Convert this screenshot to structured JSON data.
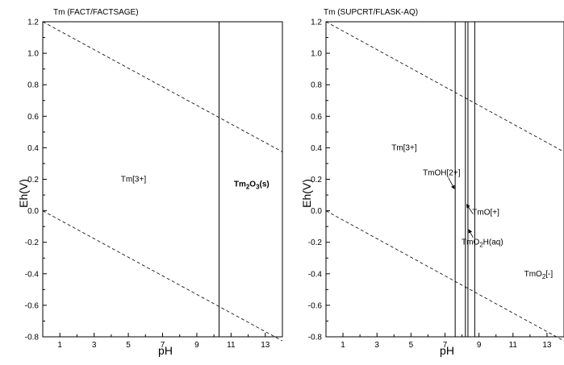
{
  "chart_data": [
    {
      "type": "line",
      "title": "Tm (FACT/FACTSAGE)",
      "xlabel": "pH",
      "ylabel": "Eh(V)",
      "xlim": [
        0,
        14
      ],
      "ylim": [
        -0.8,
        1.2
      ],
      "x_ticks": [
        "1",
        "3",
        "5",
        "7",
        "9",
        "11",
        "13"
      ],
      "y_ticks": [
        "1.2",
        "1.0",
        "0.8",
        "0.6",
        "0.4",
        "0.2",
        "0.0",
        "-0.2",
        "-0.4",
        "-0.6",
        "-0.8"
      ],
      "series": [
        {
          "style": "dashed",
          "x": [
            0,
            14
          ],
          "y": [
            1.2,
            0.374
          ]
        },
        {
          "style": "dashed",
          "x": [
            0,
            14
          ],
          "y": [
            0.0,
            -0.826
          ]
        },
        {
          "style": "solid",
          "x": [
            10.3,
            10.3
          ],
          "y": [
            -0.8,
            1.2
          ]
        }
      ],
      "labels": [
        {
          "text": "Tm[3+]",
          "x": 5.3,
          "y": 0.2
        },
        {
          "main": "Tm",
          "sub1": "2",
          "mid": "O",
          "sub2": "3",
          "tail": "(s)",
          "x": 12.2,
          "y": 0.17
        }
      ]
    },
    {
      "type": "line",
      "title": "Tm (SUPCRT/FLASK-AQ)",
      "xlabel": "pH",
      "ylabel": "Eh(V)",
      "xlim": [
        0,
        14
      ],
      "ylim": [
        -0.8,
        1.2
      ],
      "x_ticks": [
        "1",
        "3",
        "5",
        "7",
        "9",
        "11",
        "13"
      ],
      "y_ticks": [
        "1.2",
        "1.0",
        "0.8",
        "0.6",
        "0.4",
        "0.2",
        "0.0",
        "-0.2",
        "-0.4",
        "-0.6",
        "-0.8"
      ],
      "series": [
        {
          "style": "dashed",
          "x": [
            0,
            14
          ],
          "y": [
            1.2,
            0.374
          ]
        },
        {
          "style": "dashed",
          "x": [
            0,
            14
          ],
          "y": [
            0.0,
            -0.826
          ]
        },
        {
          "style": "solid",
          "x": [
            7.6,
            7.6
          ],
          "y": [
            -0.8,
            1.2
          ]
        },
        {
          "style": "solid",
          "x": [
            8.2,
            8.2
          ],
          "y": [
            -0.8,
            1.2
          ]
        },
        {
          "style": "solid",
          "x": [
            8.35,
            8.35
          ],
          "y": [
            -0.8,
            1.2
          ]
        },
        {
          "style": "solid",
          "x": [
            8.75,
            8.75
          ],
          "y": [
            -0.8,
            1.2
          ]
        }
      ],
      "labels": [
        {
          "text": "Tm[3+]",
          "x": 4.6,
          "y": 0.4
        },
        {
          "text": "TmOH[2+]",
          "x": 6.8,
          "y": 0.24
        },
        {
          "text": "TmO[+]",
          "x": 9.4,
          "y": -0.01
        },
        {
          "main": "TmO",
          "sub1": "2",
          "mid": "H(aq)",
          "x": 9.2,
          "y": -0.2
        },
        {
          "main": "TmO",
          "sub1": "2",
          "mid": "[-]",
          "x": 12.5,
          "y": -0.4
        }
      ]
    }
  ]
}
